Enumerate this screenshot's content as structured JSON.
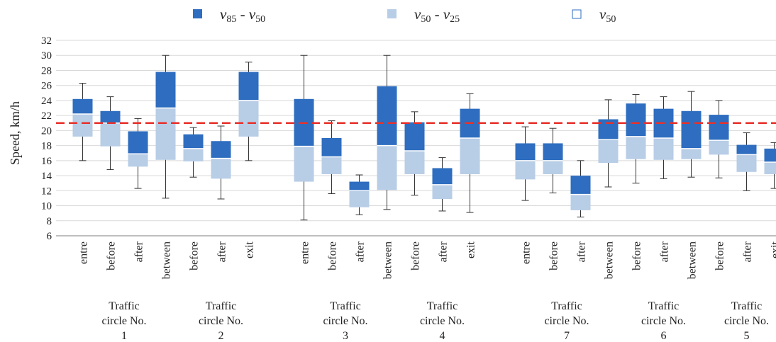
{
  "chart_data": {
    "type": "box",
    "ylabel": "Speed, km/h",
    "ylim": [
      6,
      32
    ],
    "yticks": [
      6,
      8,
      10,
      12,
      14,
      16,
      18,
      20,
      22,
      24,
      26,
      28,
      30,
      32
    ],
    "reference_line": {
      "value": 21,
      "color": "#e8302a",
      "style": "dashed"
    },
    "colors": {
      "upper_box": "#2e6dbf",
      "lower_box": "#b8cde6",
      "axis": "#7f7f7f",
      "grid": "#d9d9d9",
      "whisker": "#333333"
    },
    "legend": {
      "placement": "top",
      "items": [
        {
          "label": "v",
          "sub1": "85",
          "sep": " - ",
          "sub_label": "v",
          "sub2": "50",
          "swatch": "dark"
        },
        {
          "label": "v",
          "sub1": "50",
          "sep": " - ",
          "sub_label": "v",
          "sub2": "25",
          "swatch": "light"
        },
        {
          "label": "v",
          "sub1": "50",
          "swatch": "outline"
        }
      ]
    },
    "groups": [
      {
        "label": [
          "Traffic",
          "circle No.",
          "1"
        ]
      },
      {
        "label": [
          "Traffic",
          "circle No.",
          "2"
        ]
      },
      {
        "label": [
          "Traffic",
          "circle No.",
          "3"
        ]
      },
      {
        "label": [
          "Traffic",
          "circle No.",
          "4"
        ]
      },
      {
        "label": [
          "Traffic",
          "circle No.",
          "7"
        ]
      },
      {
        "label": [
          "Traffic",
          "circle No.",
          "6"
        ]
      },
      {
        "label": [
          "Traffic",
          "circle No.",
          "5"
        ]
      }
    ],
    "series": [
      {
        "category": "entre",
        "slot": 0,
        "min": 16.0,
        "p25": 19.2,
        "p50": 22.2,
        "p85": 24.2,
        "max": 26.3
      },
      {
        "category": "before",
        "slot": 1,
        "min": 14.8,
        "p25": 17.9,
        "p50": 21.0,
        "p85": 22.6,
        "max": 24.5
      },
      {
        "category": "after",
        "slot": 2,
        "min": 12.3,
        "p25": 15.2,
        "p50": 16.9,
        "p85": 19.9,
        "max": 21.6
      },
      {
        "category": "between",
        "slot": 3,
        "min": 11.0,
        "p25": 16.1,
        "p50": 23.0,
        "p85": 27.8,
        "max": 30.0
      },
      {
        "category": "before",
        "slot": 4,
        "min": 13.8,
        "p25": 15.9,
        "p50": 17.6,
        "p85": 19.5,
        "max": 20.4
      },
      {
        "category": "after",
        "slot": 5,
        "min": 10.9,
        "p25": 13.6,
        "p50": 16.3,
        "p85": 18.6,
        "max": 20.6
      },
      {
        "category": "exit",
        "slot": 6,
        "min": 16.0,
        "p25": 19.2,
        "p50": 24.0,
        "p85": 27.8,
        "max": 29.1
      },
      {
        "category": "entre",
        "slot": 8,
        "min": 8.1,
        "p25": 13.2,
        "p50": 17.9,
        "p85": 24.2,
        "max": 30.0
      },
      {
        "category": "before",
        "slot": 9,
        "min": 11.6,
        "p25": 14.2,
        "p50": 16.5,
        "p85": 19.0,
        "max": 21.3
      },
      {
        "category": "after",
        "slot": 10,
        "min": 8.8,
        "p25": 9.8,
        "p50": 12.0,
        "p85": 13.2,
        "max": 14.1
      },
      {
        "category": "between",
        "slot": 11,
        "min": 9.5,
        "p25": 12.1,
        "p50": 18.0,
        "p85": 25.9,
        "max": 30.0
      },
      {
        "category": "before",
        "slot": 12,
        "min": 11.4,
        "p25": 14.2,
        "p50": 17.3,
        "p85": 21.1,
        "max": 22.5
      },
      {
        "category": "after",
        "slot": 13,
        "min": 9.3,
        "p25": 10.9,
        "p50": 12.8,
        "p85": 15.0,
        "max": 16.4
      },
      {
        "category": "exit",
        "slot": 14,
        "min": 9.1,
        "p25": 14.2,
        "p50": 19.0,
        "p85": 22.9,
        "max": 24.9
      },
      {
        "category": "entre",
        "slot": 16,
        "min": 10.7,
        "p25": 13.5,
        "p50": 16.0,
        "p85": 18.3,
        "max": 20.5
      },
      {
        "category": "before",
        "slot": 17,
        "min": 11.7,
        "p25": 14.2,
        "p50": 16.0,
        "p85": 18.3,
        "max": 20.3
      },
      {
        "category": "after",
        "slot": 18,
        "min": 8.5,
        "p25": 9.4,
        "p50": 11.5,
        "p85": 14.0,
        "max": 16.0
      },
      {
        "category": "between",
        "slot": 19,
        "min": 12.5,
        "p25": 15.7,
        "p50": 18.8,
        "p85": 21.5,
        "max": 24.1
      },
      {
        "category": "before",
        "slot": 20,
        "min": 13.0,
        "p25": 16.2,
        "p50": 19.2,
        "p85": 23.6,
        "max": 24.8
      },
      {
        "category": "after",
        "slot": 21,
        "min": 13.6,
        "p25": 16.1,
        "p50": 19.0,
        "p85": 22.9,
        "max": 24.5
      },
      {
        "category": "between",
        "slot": 22,
        "min": 13.8,
        "p25": 16.2,
        "p50": 17.6,
        "p85": 22.6,
        "max": 25.2
      },
      {
        "category": "before",
        "slot": 23,
        "min": 13.7,
        "p25": 16.8,
        "p50": 18.7,
        "p85": 22.1,
        "max": 24.0
      },
      {
        "category": "after",
        "slot": 24,
        "min": 12.0,
        "p25": 14.5,
        "p50": 16.8,
        "p85": 18.1,
        "max": 19.7
      },
      {
        "category": "exit",
        "slot": 25,
        "min": 12.3,
        "p25": 14.2,
        "p50": 15.8,
        "p85": 17.6,
        "max": 18.4
      }
    ],
    "group_slots": [
      [
        0,
        1,
        2,
        3
      ],
      [
        4,
        5,
        6
      ],
      [
        8,
        9,
        10,
        11
      ],
      [
        12,
        13,
        14
      ],
      [
        16,
        17,
        18,
        19
      ],
      [
        20,
        21,
        22
      ],
      [
        23,
        24,
        25
      ]
    ]
  }
}
